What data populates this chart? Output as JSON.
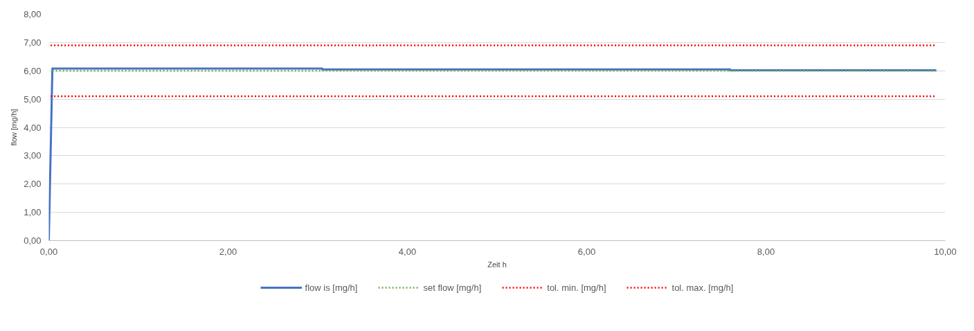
{
  "chart_data": {
    "type": "line",
    "xlabel": "Zeit h",
    "ylabel": "flow [mg/h]",
    "xlim": [
      0,
      10
    ],
    "ylim": [
      0,
      8
    ],
    "xticks": [
      {
        "value": 0,
        "label": "0,00"
      },
      {
        "value": 2,
        "label": "2,00"
      },
      {
        "value": 4,
        "label": "4,00"
      },
      {
        "value": 6,
        "label": "6,00"
      },
      {
        "value": 8,
        "label": "8,00"
      },
      {
        "value": 10,
        "label": "10,00"
      }
    ],
    "yticks": [
      {
        "value": 0,
        "label": "0,00"
      },
      {
        "value": 1,
        "label": "1,00"
      },
      {
        "value": 2,
        "label": "2,00"
      },
      {
        "value": 3,
        "label": "3,00"
      },
      {
        "value": 4,
        "label": "4,00"
      },
      {
        "value": 5,
        "label": "5,00"
      },
      {
        "value": 6,
        "label": "6,00"
      },
      {
        "value": 7,
        "label": "7,00"
      },
      {
        "value": 8,
        "label": "8,00"
      }
    ],
    "grid": "y",
    "legend": "bottom",
    "marker": "none",
    "series": [
      {
        "name": "flow is [mg/h]",
        "color": "#4472c4",
        "line_style": "solid",
        "x": [
          0,
          0.04,
          3.05,
          3.05,
          7.6,
          7.6,
          9.9
        ],
        "values": [
          0,
          6.08,
          6.08,
          6.05,
          6.05,
          6.02,
          6.02
        ]
      },
      {
        "name": "set flow [mg/h]",
        "color": "#70ad47",
        "line_style": "dotted",
        "x": [
          0.04,
          9.9
        ],
        "values": [
          6.0,
          6.0
        ]
      },
      {
        "name": "tol. min. [mg/h]",
        "color": "#ff0000",
        "line_style": "dotted",
        "x": [
          0.02,
          9.9
        ],
        "values": [
          5.1,
          5.1
        ]
      },
      {
        "name": "tol. max. [mg/h]",
        "color": "#ff0000",
        "line_style": "dotted",
        "x": [
          0.02,
          9.9
        ],
        "values": [
          6.9,
          6.9
        ]
      }
    ]
  }
}
